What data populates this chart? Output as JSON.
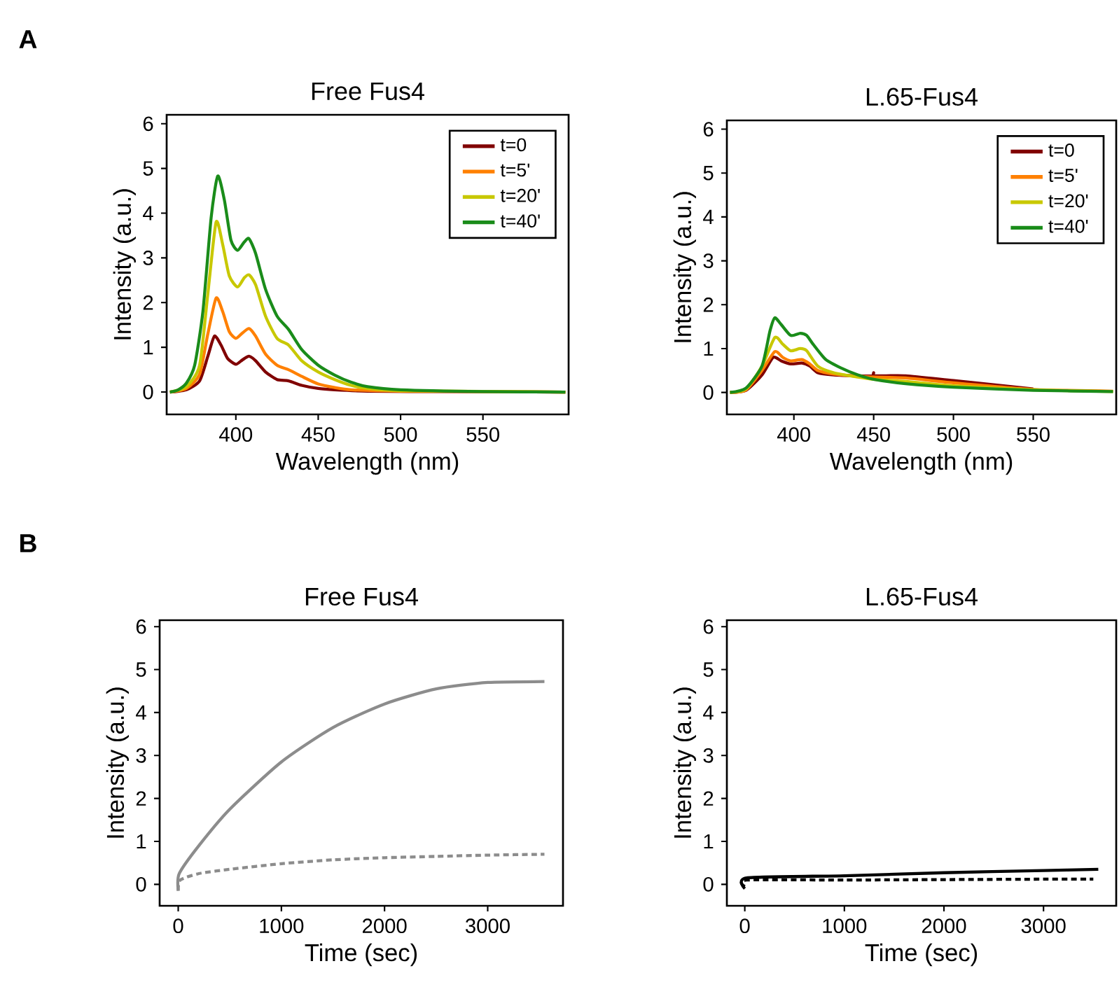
{
  "chart_data": [
    {
      "type": "line",
      "title": "Free Fus4",
      "xlabel": "Wavelength (nm)",
      "ylabel": "Intensity (a.u.)",
      "annotations": [
        "A"
      ],
      "xlim": [
        358,
        602
      ],
      "ylim": [
        -0.5,
        6.2
      ],
      "xticks": [
        400,
        450,
        500,
        550
      ],
      "yticks": [
        0,
        1,
        2,
        3,
        4,
        5,
        6
      ],
      "legend": "top right",
      "grid": false,
      "marker": "none",
      "series": [
        {
          "name": "t=0",
          "color": "#800000",
          "x": [
            360,
            370,
            378,
            383,
            387,
            391,
            395,
            400,
            404,
            408,
            412,
            418,
            425,
            432,
            440,
            450,
            460,
            480,
            520,
            600
          ],
          "values": [
            0,
            0.05,
            0.25,
            0.8,
            1.25,
            1.05,
            0.75,
            0.62,
            0.72,
            0.8,
            0.7,
            0.45,
            0.28,
            0.25,
            0.15,
            0.08,
            0.05,
            0.02,
            0.01,
            0
          ]
        },
        {
          "name": "t=5'",
          "color": "#ff8000",
          "x": [
            360,
            370,
            378,
            383,
            388,
            392,
            396,
            400,
            404,
            408,
            412,
            418,
            425,
            432,
            440,
            450,
            460,
            470,
            500,
            600
          ],
          "values": [
            0,
            0.08,
            0.4,
            1.3,
            2.1,
            1.8,
            1.35,
            1.2,
            1.32,
            1.42,
            1.25,
            0.85,
            0.6,
            0.5,
            0.35,
            0.18,
            0.1,
            0.05,
            0.02,
            0
          ]
        },
        {
          "name": "t=20'",
          "color": "#c8c800",
          "x": [
            360,
            370,
            378,
            383,
            388,
            392,
            396,
            401,
            405,
            408,
            412,
            418,
            425,
            432,
            440,
            450,
            460,
            470,
            480,
            500,
            600
          ],
          "values": [
            0,
            0.12,
            0.6,
            2.2,
            3.8,
            3.3,
            2.6,
            2.35,
            2.55,
            2.62,
            2.4,
            1.7,
            1.2,
            1.05,
            0.7,
            0.45,
            0.28,
            0.15,
            0.08,
            0.03,
            0
          ]
        },
        {
          "name": "t=40'",
          "color": "#1a8c1a",
          "x": [
            360,
            365,
            370,
            375,
            380,
            385,
            389,
            393,
            397,
            401,
            405,
            408,
            412,
            418,
            425,
            432,
            440,
            450,
            460,
            470,
            480,
            500,
            550,
            600
          ],
          "values": [
            0,
            0.05,
            0.2,
            0.6,
            1.8,
            3.9,
            4.83,
            4.3,
            3.4,
            3.17,
            3.35,
            3.43,
            3.1,
            2.3,
            1.7,
            1.4,
            0.95,
            0.6,
            0.38,
            0.22,
            0.12,
            0.05,
            0.01,
            0
          ]
        }
      ]
    },
    {
      "type": "line",
      "title": "L.65-Fus4",
      "xlabel": "Wavelength (nm)",
      "ylabel": "Intensity (a.u.)",
      "xlim": [
        358,
        602
      ],
      "ylim": [
        -0.5,
        6.2
      ],
      "xticks": [
        400,
        450,
        500,
        550
      ],
      "yticks": [
        0,
        1,
        2,
        3,
        4,
        5,
        6
      ],
      "legend": "top right",
      "grid": false,
      "marker": "none",
      "series": [
        {
          "name": "t=0",
          "color": "#800000",
          "x": [
            360,
            370,
            380,
            387,
            392,
            398,
            405,
            410,
            415,
            425,
            440,
            449,
            450,
            451,
            470,
            500,
            550
          ],
          "values": [
            0,
            0.05,
            0.4,
            0.8,
            0.72,
            0.65,
            0.67,
            0.6,
            0.45,
            0.4,
            0.38,
            0.38,
            0.45,
            0.38,
            0.38,
            0.27,
            0.08
          ]
        },
        {
          "name": "t=5'",
          "color": "#ff8000",
          "x": [
            360,
            370,
            380,
            388,
            393,
            398,
            405,
            410,
            415,
            425,
            440,
            450,
            470,
            500,
            550,
            600
          ],
          "values": [
            0,
            0.06,
            0.5,
            0.93,
            0.8,
            0.72,
            0.75,
            0.65,
            0.5,
            0.42,
            0.37,
            0.35,
            0.33,
            0.22,
            0.07,
            0.03
          ]
        },
        {
          "name": "t=20'",
          "color": "#c8c800",
          "x": [
            360,
            370,
            380,
            388,
            393,
            398,
            404,
            408,
            415,
            425,
            440,
            450,
            470,
            500,
            550,
            600
          ],
          "values": [
            0,
            0.08,
            0.6,
            1.25,
            1.1,
            0.95,
            1.0,
            0.95,
            0.6,
            0.45,
            0.35,
            0.3,
            0.25,
            0.15,
            0.06,
            0.02
          ]
        },
        {
          "name": "t=40'",
          "color": "#1a8c1a",
          "x": [
            360,
            370,
            380,
            385,
            388,
            392,
            398,
            404,
            408,
            412,
            420,
            430,
            440,
            450,
            470,
            500,
            550,
            600
          ],
          "values": [
            0,
            0.1,
            0.6,
            1.4,
            1.7,
            1.55,
            1.3,
            1.35,
            1.3,
            1.1,
            0.75,
            0.55,
            0.4,
            0.3,
            0.2,
            0.12,
            0.05,
            0.02
          ]
        }
      ]
    },
    {
      "type": "line",
      "title": "Free Fus4",
      "xlabel": "Time (sec)",
      "ylabel": "Intensity (a.u.)",
      "annotations": [
        "B"
      ],
      "xlim": [
        -180,
        3730
      ],
      "ylim": [
        -0.5,
        6.15
      ],
      "xticks": [
        0,
        1000,
        2000,
        3000
      ],
      "yticks": [
        0,
        1,
        2,
        3,
        4,
        5,
        6
      ],
      "grid": false,
      "marker": "none",
      "series": [
        {
          "color": "#8c8c8c",
          "line_style": "solid",
          "x": [
            0,
            10,
            200,
            500,
            1000,
            1500,
            2000,
            2500,
            3000,
            3550
          ],
          "values": [
            -0.15,
            0.25,
            0.9,
            1.75,
            2.85,
            3.65,
            4.2,
            4.55,
            4.7,
            4.72
          ]
        },
        {
          "color": "#8c8c8c",
          "line_style": "dashed",
          "x": [
            0,
            20,
            200,
            500,
            1000,
            1500,
            2000,
            2500,
            3000,
            3550
          ],
          "values": [
            -0.15,
            0.1,
            0.25,
            0.35,
            0.48,
            0.57,
            0.62,
            0.65,
            0.68,
            0.7
          ]
        }
      ]
    },
    {
      "type": "line",
      "title": "L.65-Fus4",
      "xlabel": "Time (sec)",
      "ylabel": "Intensity (a.u.)",
      "xlim": [
        -180,
        3730
      ],
      "ylim": [
        -0.5,
        6.15
      ],
      "xticks": [
        0,
        1000,
        2000,
        3000
      ],
      "yticks": [
        0,
        1,
        2,
        3,
        4,
        5,
        6
      ],
      "grid": false,
      "marker": "none",
      "series": [
        {
          "color": "#000000",
          "line_style": "solid",
          "x": [
            0,
            20,
            1000,
            2000,
            3000,
            3550
          ],
          "values": [
            -0.1,
            0.15,
            0.2,
            0.27,
            0.32,
            0.35
          ]
        },
        {
          "color": "#000000",
          "line_style": "dashed",
          "x": [
            0,
            20,
            1000,
            2000,
            3000,
            3500
          ],
          "values": [
            -0.05,
            0.1,
            0.1,
            0.11,
            0.12,
            0.12
          ]
        }
      ]
    }
  ]
}
